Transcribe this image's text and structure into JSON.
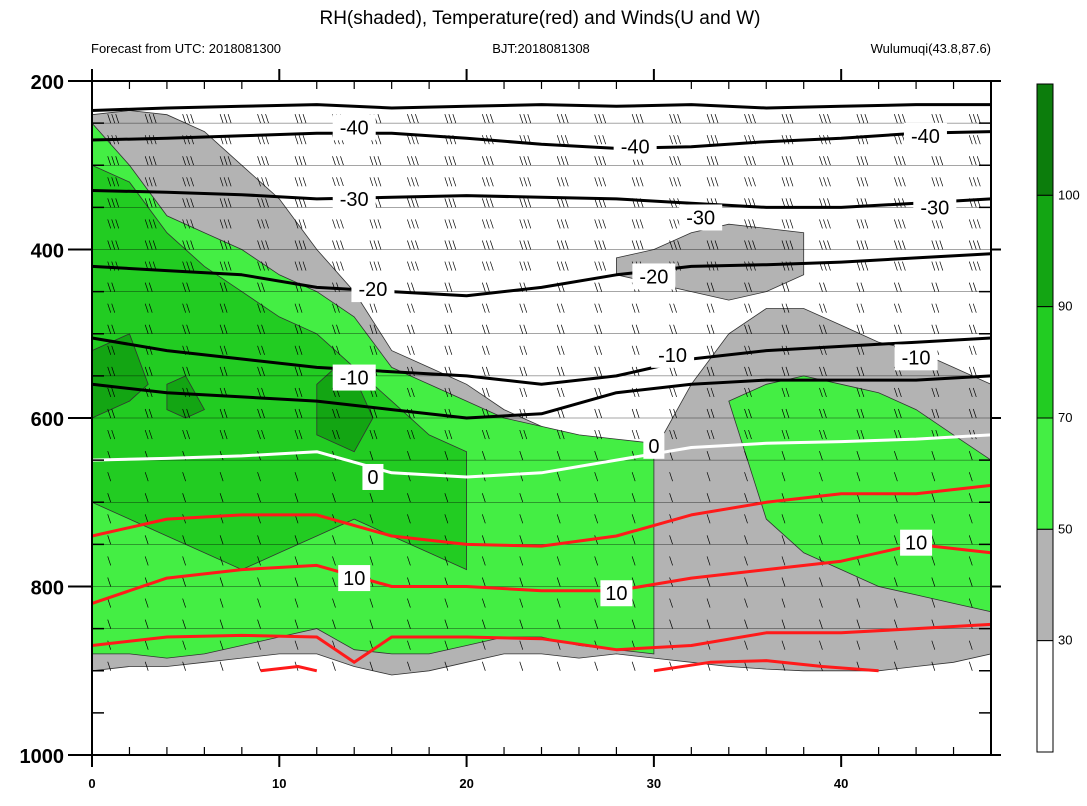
{
  "chart_data": {
    "type": "contour",
    "title": "RH(shaded), Temperature(red) and Winds(U and W)",
    "subtitle_left": "Forecast from UTC: 2018081300",
    "subtitle_center": "BJT:2018081308",
    "subtitle_right": "Wulumuqi(43.8,87.6)",
    "x_axis": {
      "min": 0,
      "max": 48,
      "ticks": [
        0,
        10,
        20,
        30,
        40
      ],
      "minor_step": 2
    },
    "y_axis": {
      "min": 200,
      "max": 1000,
      "ticks": [
        200,
        400,
        600,
        800,
        1000
      ],
      "minor_step": 50,
      "direction": "down"
    },
    "colorbar": {
      "labels": [
        "100",
        "90",
        "70",
        "50",
        "30"
      ],
      "bins": [
        {
          "from": 0,
          "to": 30,
          "color": "#ffffff"
        },
        {
          "from": 30,
          "to": 50,
          "color": "#b3b3b3"
        },
        {
          "from": 50,
          "to": 70,
          "color": "#44ee44"
        },
        {
          "from": 70,
          "to": 90,
          "color": "#22cc22"
        },
        {
          "from": 90,
          "to": 100,
          "color": "#13a513"
        },
        {
          "from": 100,
          "to": 110,
          "color": "#0c7d0c"
        }
      ]
    },
    "rh_regions": [
      {
        "level": "30-50",
        "x": [
          0,
          2,
          4,
          6,
          8,
          10,
          12,
          14,
          16,
          18,
          20,
          22,
          24,
          26,
          28,
          30,
          32,
          34,
          36,
          38,
          40,
          42,
          44,
          46,
          48,
          48,
          46,
          44,
          42,
          40,
          38,
          36,
          34,
          32,
          30,
          28,
          26,
          24,
          22,
          20,
          18,
          16,
          14,
          12,
          10,
          8,
          6,
          4,
          2,
          0
        ],
        "p": [
          240,
          235,
          240,
          260,
          300,
          340,
          400,
          450,
          520,
          540,
          560,
          590,
          610,
          630,
          640,
          640,
          560,
          500,
          470,
          470,
          490,
          510,
          520,
          540,
          560,
          880,
          890,
          895,
          900,
          900,
          900,
          898,
          895,
          890,
          885,
          880,
          885,
          880,
          880,
          890,
          900,
          905,
          895,
          880,
          880,
          885,
          890,
          895,
          895,
          900
        ]
      },
      {
        "level": "30-50",
        "x": [
          28,
          30,
          32,
          34,
          36,
          38,
          38,
          36,
          34,
          32,
          30,
          28
        ],
        "p": [
          410,
          400,
          380,
          370,
          375,
          380,
          430,
          450,
          460,
          450,
          440,
          430
        ]
      },
      {
        "level": "50-70",
        "x": [
          0,
          2,
          4,
          6,
          8,
          10,
          12,
          14,
          16,
          18,
          20,
          22,
          24,
          26,
          28,
          30,
          30,
          28,
          26,
          24,
          22,
          20,
          18,
          16,
          14,
          12,
          10,
          8,
          6,
          4,
          2,
          0
        ],
        "p": [
          250,
          300,
          360,
          380,
          400,
          430,
          450,
          480,
          540,
          560,
          580,
          600,
          610,
          620,
          625,
          630,
          880,
          875,
          870,
          860,
          860,
          870,
          880,
          880,
          875,
          850,
          860,
          870,
          880,
          885,
          880,
          880
        ]
      },
      {
        "level": "50-70",
        "x": [
          34,
          36,
          38,
          40,
          42,
          44,
          46,
          48,
          48,
          46,
          44,
          42,
          40,
          38,
          36
        ],
        "p": [
          580,
          560,
          550,
          560,
          570,
          590,
          620,
          650,
          830,
          820,
          810,
          800,
          780,
          760,
          720
        ]
      },
      {
        "level": "70-90",
        "x": [
          0,
          2,
          4,
          6,
          8,
          10,
          12,
          14,
          16,
          18,
          20,
          20,
          18,
          16,
          14,
          12,
          10,
          8,
          6,
          4,
          2,
          0
        ],
        "p": [
          300,
          320,
          380,
          420,
          450,
          480,
          500,
          540,
          580,
          620,
          640,
          780,
          760,
          740,
          720,
          740,
          760,
          780,
          760,
          740,
          720,
          700
        ]
      },
      {
        "level": "90-100",
        "x": [
          0,
          2,
          3,
          2,
          0
        ],
        "p": [
          520,
          500,
          560,
          580,
          600
        ]
      },
      {
        "level": "90-100",
        "x": [
          4,
          5,
          6,
          5,
          4
        ],
        "p": [
          560,
          550,
          590,
          600,
          590
        ]
      },
      {
        "level": "90-100",
        "x": [
          12,
          13,
          14,
          15,
          14,
          12
        ],
        "p": [
          560,
          540,
          550,
          600,
          640,
          620
        ]
      }
    ],
    "temperature_contours": [
      {
        "label": "-40",
        "color": "black",
        "x": [
          0,
          4,
          8,
          12,
          16,
          20,
          24,
          28,
          32,
          36,
          40,
          44,
          48
        ],
        "p": [
          235,
          232,
          230,
          228,
          232,
          230,
          228,
          230,
          228,
          232,
          230,
          228,
          228
        ]
      },
      {
        "label": "-40",
        "color": "black",
        "x": [
          0,
          4,
          8,
          12,
          16,
          20,
          24,
          28,
          32,
          36,
          40,
          44,
          48
        ],
        "p": [
          270,
          268,
          265,
          262,
          262,
          268,
          275,
          280,
          278,
          272,
          268,
          262,
          260
        ]
      },
      {
        "label": "-30",
        "color": "black",
        "x": [
          0,
          4,
          8,
          12,
          16,
          20,
          24,
          28,
          32,
          36,
          40,
          44,
          48
        ],
        "p": [
          330,
          332,
          335,
          340,
          338,
          336,
          338,
          340,
          345,
          350,
          350,
          345,
          340
        ]
      },
      {
        "label": "-20",
        "color": "black",
        "x": [
          0,
          4,
          8,
          12,
          16,
          20,
          24,
          28,
          32,
          36,
          40,
          44,
          48
        ],
        "p": [
          420,
          425,
          430,
          445,
          450,
          455,
          445,
          430,
          420,
          418,
          415,
          410,
          405
        ]
      },
      {
        "label": "-10",
        "color": "black",
        "x": [
          0,
          4,
          8,
          12,
          16,
          20,
          24,
          28,
          32,
          36,
          40,
          44,
          48
        ],
        "p": [
          505,
          520,
          530,
          540,
          545,
          550,
          560,
          550,
          530,
          520,
          515,
          510,
          505
        ]
      },
      {
        "label": "-10",
        "color": "black",
        "x": [
          0,
          4,
          8,
          12,
          16,
          20,
          24,
          28,
          32,
          36,
          40,
          44,
          48
        ],
        "p": [
          560,
          570,
          575,
          580,
          590,
          600,
          595,
          570,
          560,
          555,
          555,
          555,
          550
        ]
      },
      {
        "label": "0",
        "color": "white",
        "x": [
          0,
          4,
          8,
          12,
          16,
          20,
          24,
          28,
          32,
          36,
          40,
          44,
          48
        ],
        "p": [
          650,
          648,
          645,
          640,
          665,
          670,
          665,
          650,
          635,
          630,
          628,
          625,
          620
        ]
      },
      {
        "label": "10",
        "color": "red",
        "x": [
          0,
          4,
          8,
          12,
          16,
          20,
          24,
          28,
          32,
          36,
          40,
          44,
          48
        ],
        "p": [
          740,
          720,
          715,
          715,
          740,
          750,
          752,
          740,
          715,
          700,
          690,
          690,
          680
        ]
      },
      {
        "label": "10",
        "color": "red",
        "x": [
          0,
          4,
          8,
          12,
          16,
          20,
          24,
          28,
          32,
          36,
          40,
          44,
          48
        ],
        "p": [
          820,
          790,
          780,
          775,
          800,
          800,
          805,
          805,
          790,
          780,
          770,
          750,
          760
        ]
      },
      {
        "label": "",
        "color": "red",
        "x": [
          0,
          4,
          8,
          12,
          14,
          16,
          20,
          24,
          28,
          32,
          36,
          40,
          44,
          48
        ],
        "p": [
          870,
          860,
          858,
          860,
          890,
          860,
          860,
          862,
          875,
          870,
          855,
          855,
          850,
          845
        ]
      },
      {
        "label": "",
        "color": "red",
        "x": [
          9,
          11,
          12
        ],
        "p": [
          900,
          895,
          900
        ]
      },
      {
        "label": "",
        "color": "red",
        "x": [
          30,
          33,
          36,
          39,
          42
        ],
        "p": [
          900,
          890,
          888,
          895,
          900
        ]
      }
    ],
    "contour_labels": [
      {
        "text": "-40",
        "x": 14,
        "p": 255
      },
      {
        "text": "-40",
        "x": 29,
        "p": 278
      },
      {
        "text": "-40",
        "x": 44.5,
        "p": 265
      },
      {
        "text": "-30",
        "x": 14,
        "p": 340
      },
      {
        "text": "-30",
        "x": 32.5,
        "p": 362
      },
      {
        "text": "-30",
        "x": 45,
        "p": 350
      },
      {
        "text": "-20",
        "x": 15,
        "p": 447
      },
      {
        "text": "-20",
        "x": 30,
        "p": 432
      },
      {
        "text": "-10",
        "x": 14,
        "p": 552
      },
      {
        "text": "-10",
        "x": 31,
        "p": 525
      },
      {
        "text": "-10",
        "x": 44,
        "p": 528
      },
      {
        "text": "0",
        "x": 15,
        "p": 670
      },
      {
        "text": "0",
        "x": 30,
        "p": 633
      },
      {
        "text": "10",
        "x": 14,
        "p": 790
      },
      {
        "text": "10",
        "x": 28,
        "p": 808
      },
      {
        "text": "10",
        "x": 44,
        "p": 748
      }
    ]
  }
}
